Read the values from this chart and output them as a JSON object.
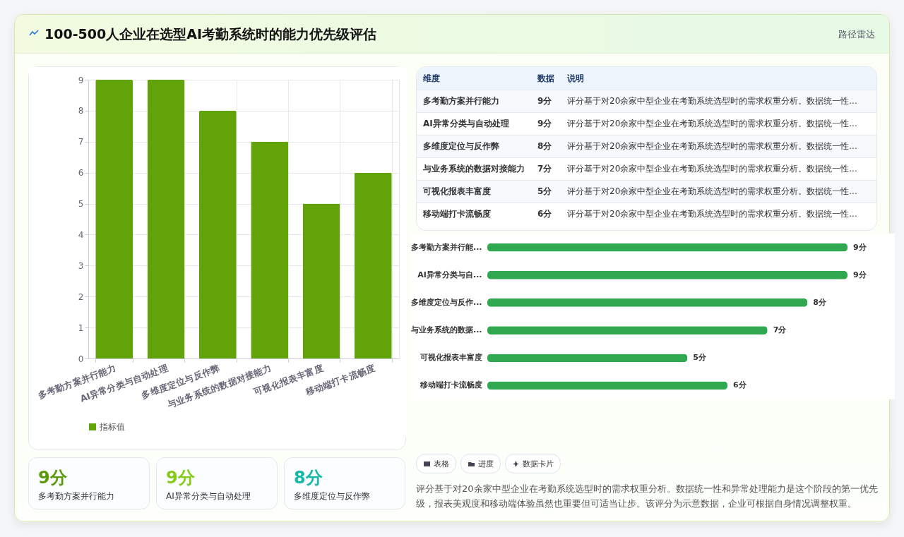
{
  "chart_data": [
    {
      "type": "bar",
      "title": "100-500人企业在选型AI考勤系统时的能力优先级评估",
      "annotations": [
        "路径雷达"
      ],
      "categories": [
        "多考勤方案并行能力",
        "AI异常分类与自动处理",
        "多维度定位与反作弊",
        "与业务系统的数据对接能力",
        "可视化报表丰富度",
        "移动端打卡流畅度"
      ],
      "series": [
        {
          "name": "指标值",
          "color": "#62a30a",
          "values": [
            9,
            9,
            8,
            7,
            5,
            6
          ]
        }
      ],
      "ylim": [
        0,
        9
      ],
      "yticks": [
        0,
        1,
        2,
        3,
        4,
        5,
        6,
        7,
        8,
        9
      ],
      "grid": true,
      "legend": "bottom"
    },
    {
      "type": "other",
      "annotations": [
        "维度",
        "数据",
        "说明",
        "评分基于对20余家中型企业在考勤系统选型时的需求权重分析。数据统一性..."
      ],
      "categories": [
        "多考勤方案并行能力",
        "AI异常分类与自动处理",
        "多维度定位与反作弊",
        "与业务系统的数据对接能力",
        "可视化报表丰富度",
        "移动端打卡流畅度"
      ],
      "value_labels": [
        "9分",
        "9分",
        "8分",
        "7分",
        "5分",
        "6分"
      ]
    },
    {
      "type": "bar",
      "orientation": "horizontal",
      "categories": [
        "多考勤方案并行能...",
        "AI异常分类与自...",
        "多维度定位与反作...",
        "与业务系统的数据...",
        "可视化报表丰富度",
        "移动端打卡流畅度"
      ],
      "values": [
        9,
        9,
        8,
        7,
        5,
        6
      ],
      "value_labels": [
        "9分",
        "9分",
        "8分",
        "7分",
        "5分",
        "6分"
      ],
      "color": "#2fa84f"
    },
    {
      "type": "other",
      "categories": [
        "多考勤方案并行能力",
        "AI异常分类与自动处理",
        "多维度定位与反作弊"
      ],
      "value_labels": [
        "9分",
        "9分",
        "8分"
      ]
    },
    {
      "type": "other",
      "categories": [
        "表格",
        "进度",
        "数据卡片"
      ],
      "annotations": [
        "评分基于对20余家中型企业在考勤系统选型时的需求权重分析。数据统一性和异常处理能力是这个阶段的第一优先级，报表美观度和移动端体验虽然也重要但可适当让步。该评分为示意数据，企业可根据自身情况调整权重。"
      ]
    }
  ]
}
